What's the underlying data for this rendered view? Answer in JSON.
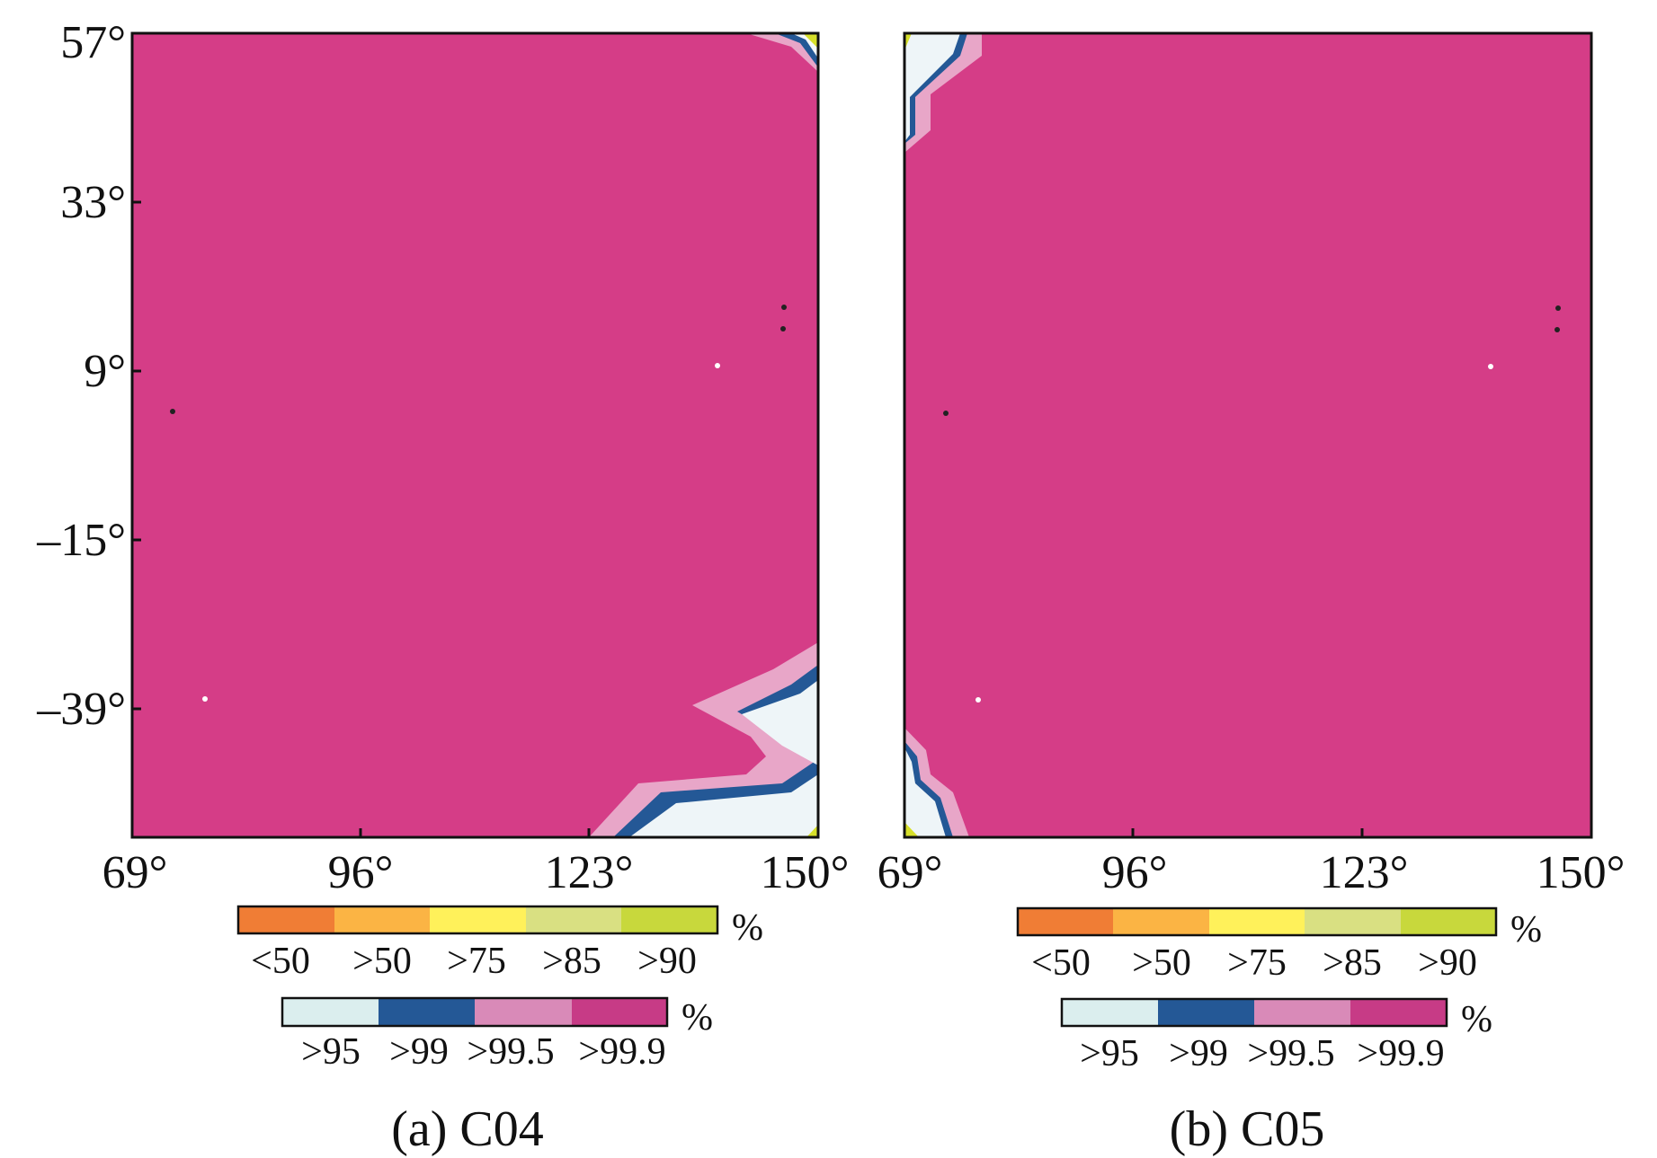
{
  "panels": [
    {
      "id": "C04",
      "caption": "(a) C04",
      "x_ticks": [
        "69°",
        "96°",
        "123°",
        "150°"
      ],
      "y_ticks": [
        "57°",
        "33°",
        "9°",
        "–15°",
        "–39°"
      ],
      "show_y_ticks": true,
      "colorbars": [
        {
          "unit": "%",
          "labels": [
            "<50",
            ">50",
            ">75",
            ">85",
            ">90"
          ],
          "colors": [
            "#f07d35",
            "#fbb444",
            "#fff15a",
            "#d9e082",
            "#c8d83c"
          ]
        },
        {
          "unit": "%",
          "labels": [
            ">95",
            ">99",
            ">99.5",
            ">99.9"
          ],
          "colors": [
            "#dbeeee",
            "#245896",
            "#d98ab8",
            "#c73b86"
          ]
        }
      ]
    },
    {
      "id": "C05",
      "caption": "(b) C05",
      "x_ticks": [
        "69°",
        "96°",
        "123°",
        "150°"
      ],
      "y_ticks": [],
      "show_y_ticks": false,
      "colorbars": [
        {
          "unit": "%",
          "labels": [
            "<50",
            ">50",
            ">75",
            ">85",
            ">90"
          ],
          "colors": [
            "#f07d35",
            "#fbb444",
            "#fff15a",
            "#d9e082",
            "#c8d83c"
          ]
        },
        {
          "unit": "%",
          "labels": [
            ">95",
            ">99",
            ">99.5",
            ">99.9"
          ],
          "colors": [
            "#dbeeee",
            "#245896",
            "#d98ab8",
            "#c73b86"
          ]
        }
      ]
    }
  ],
  "map_colors": {
    "dominant": "#d53d87",
    "band_99_5": "#e8a6c8",
    "band_99": "#245896",
    "band_95": "#eef5f8",
    "band_90": "#d6df2a"
  }
}
